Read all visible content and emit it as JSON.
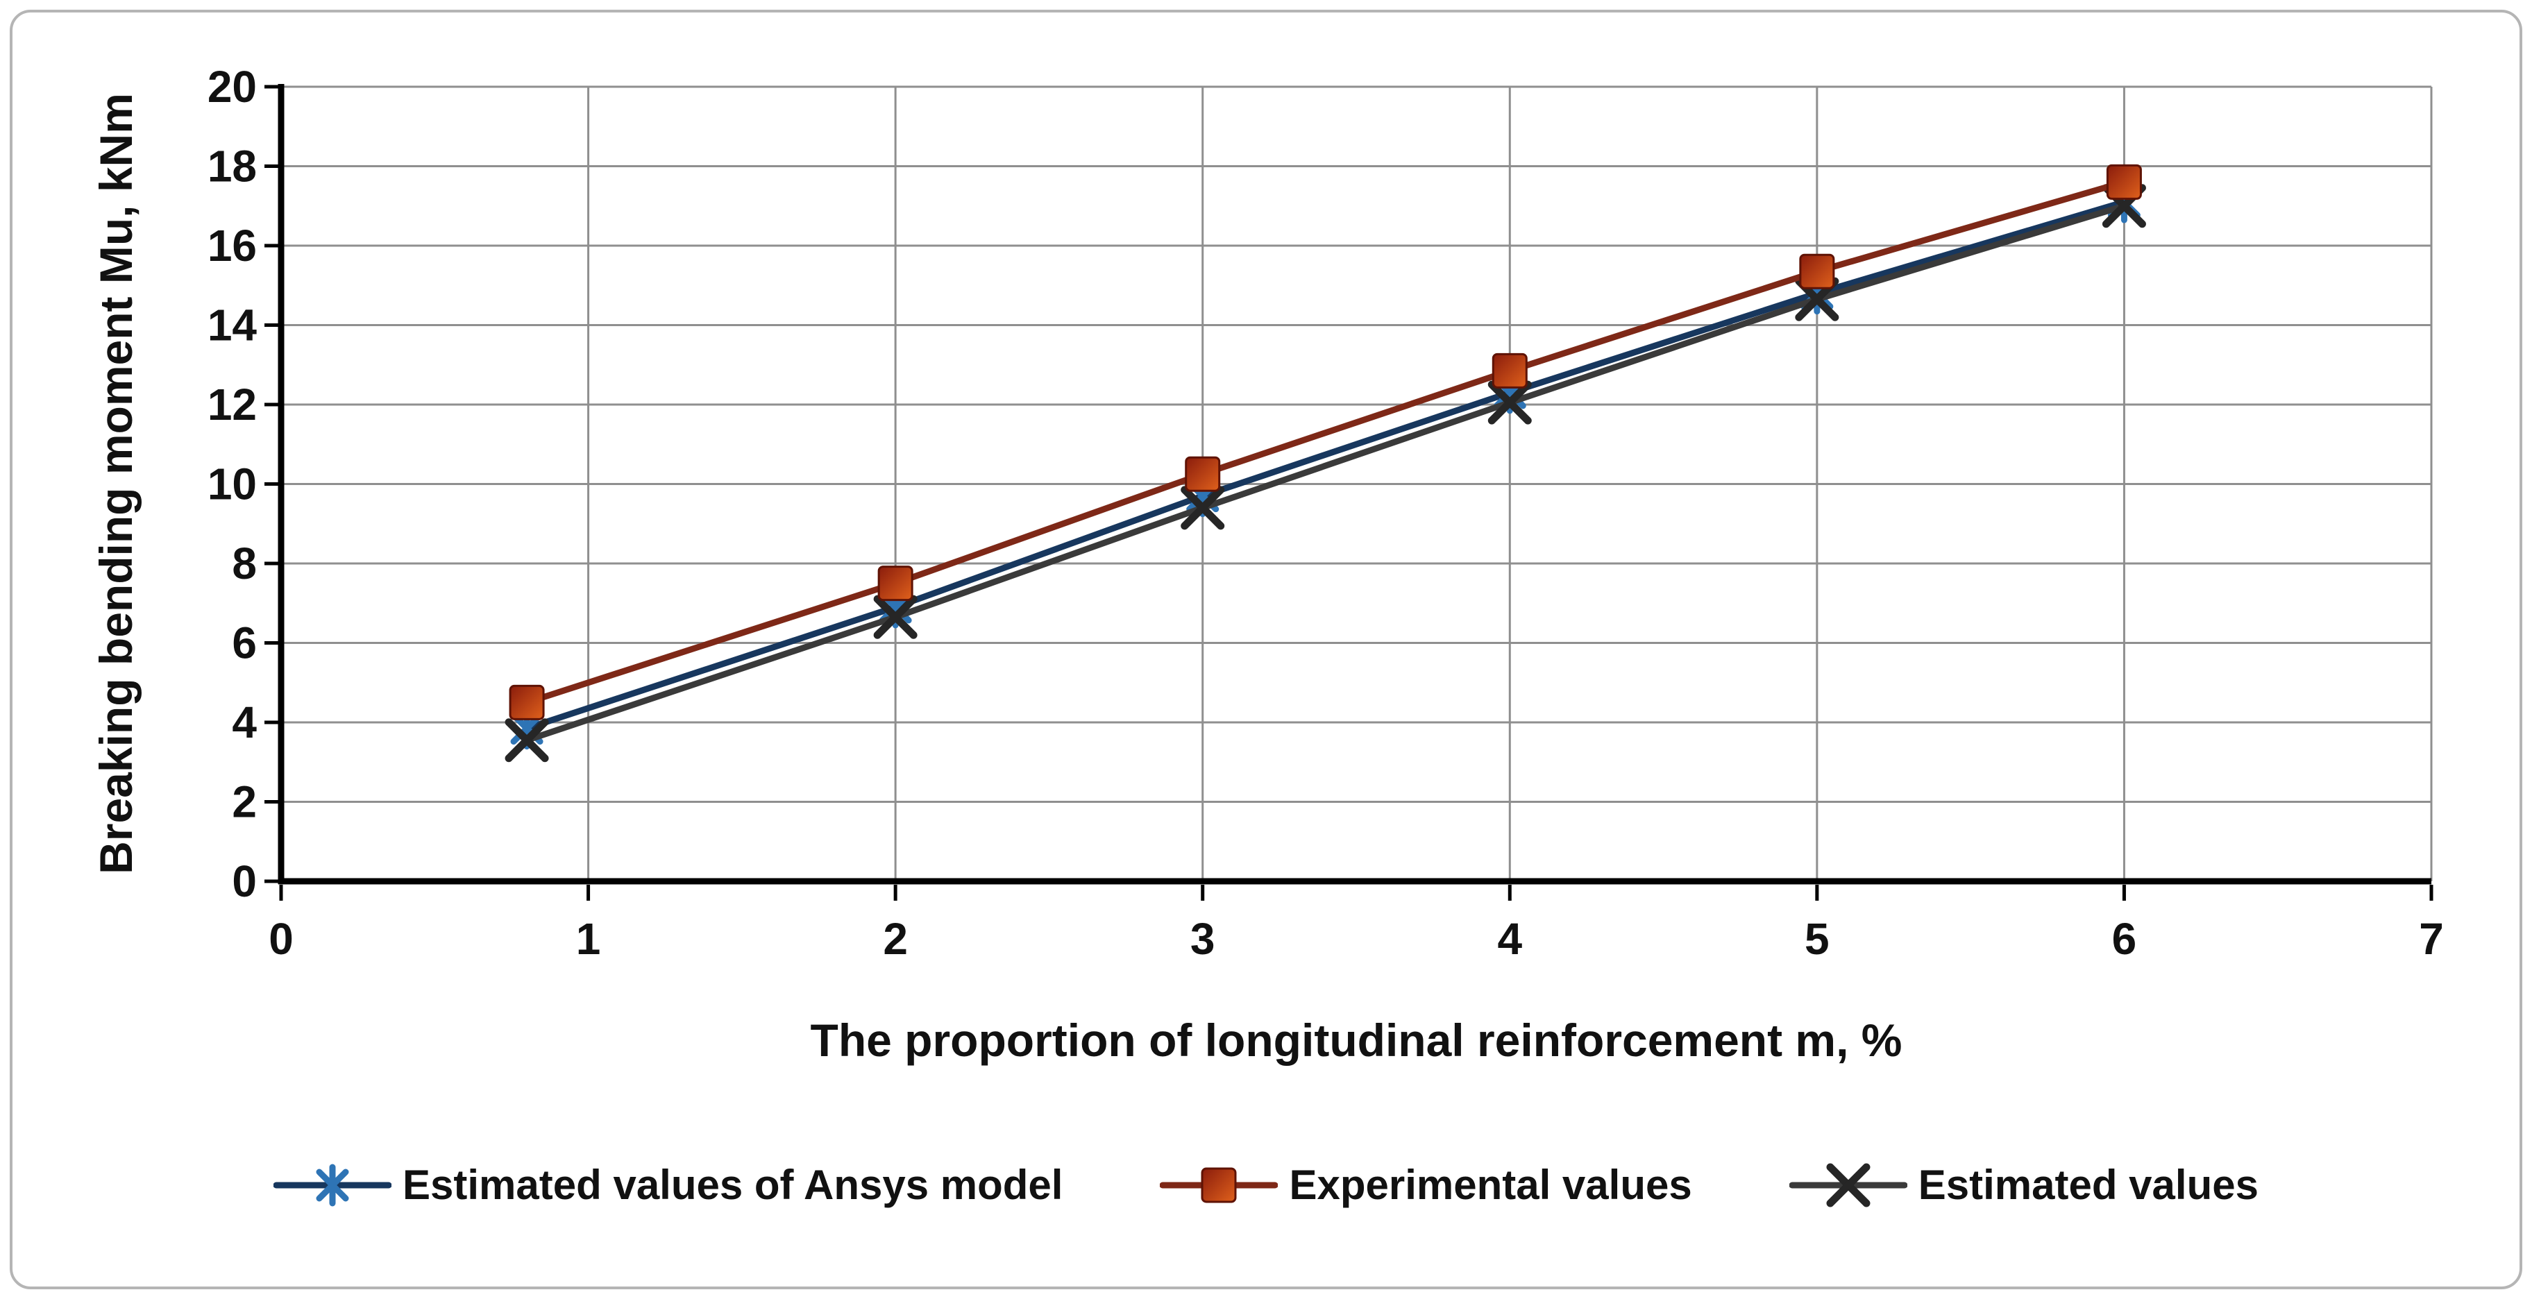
{
  "panel": {
    "background_color": "#ffffff",
    "border_color": "#b5b5b5"
  },
  "chart_data": {
    "type": "line",
    "title": "",
    "xlabel": "The proportion of longitudinal reinforcement m, %",
    "ylabel": "Breaking bending moment Mu, kNm",
    "xlim": [
      0,
      7
    ],
    "ylim": [
      0,
      20
    ],
    "x_ticks": [
      0,
      1,
      2,
      3,
      4,
      5,
      6,
      7
    ],
    "y_ticks": [
      0,
      2,
      4,
      6,
      8,
      10,
      12,
      14,
      16,
      18,
      20
    ],
    "grid": true,
    "legend_position": "bottom",
    "x": [
      0.8,
      2,
      3,
      4,
      5,
      6
    ],
    "series": [
      {
        "name": "Estimated values of Ansys model",
        "marker": "asterisk",
        "line_color": "#17375e",
        "marker_color": "#2e74b5",
        "values": [
          3.85,
          6.9,
          9.7,
          12.3,
          14.8,
          17.1
        ]
      },
      {
        "name": "Experimental values",
        "marker": "square",
        "line_color": "#7e2817",
        "marker_color": "#d4571e",
        "marker_color_start": "#8a1c0c",
        "marker_color_end": "#e0611c",
        "marker_stroke": "#5f1305",
        "values": [
          4.5,
          7.5,
          10.25,
          12.85,
          15.35,
          17.6
        ]
      },
      {
        "name": "Estimated values",
        "marker": "x",
        "line_color": "#3a3a3a",
        "marker_color": "#262626",
        "values": [
          3.55,
          6.65,
          9.4,
          12.05,
          14.65,
          17.0
        ]
      }
    ],
    "grid_color": "#8f8f8f",
    "axis_color": "#000000",
    "text_color": "#111111"
  }
}
